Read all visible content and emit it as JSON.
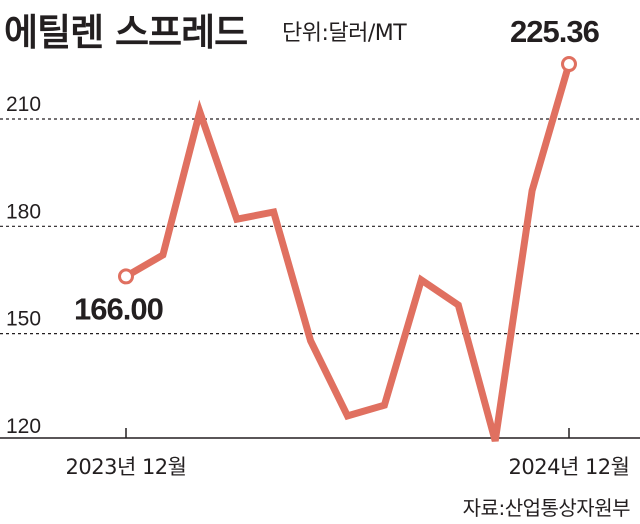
{
  "title": "에틸렌 스프레드",
  "unit": "단위:달러/MT",
  "source": "자료:산업통상자원부",
  "colors": {
    "line": "#e07060",
    "grid": "#231f20",
    "text": "#231f20"
  },
  "chart_data": {
    "type": "line",
    "title": "에틸렌 스프레드",
    "ylabel": "단위:달러/MT",
    "ylim": [
      115,
      240
    ],
    "yticks": [
      "210",
      "180",
      "150",
      "120"
    ],
    "x_tick_labels": [
      "2023년 12월",
      "2024년 12월"
    ],
    "x": [
      "2023년 12월",
      "",
      "",
      "",
      "",
      "",
      "",
      "",
      "",
      "",
      "",
      "",
      "2024년 12월"
    ],
    "series": [
      {
        "values": [
          166.0,
          172,
          212,
          182,
          184,
          148,
          127,
          130,
          165,
          158,
          120,
          190,
          225.36
        ]
      }
    ],
    "data_labels": [
      "166.00",
      "225.36"
    ],
    "grid": true
  }
}
